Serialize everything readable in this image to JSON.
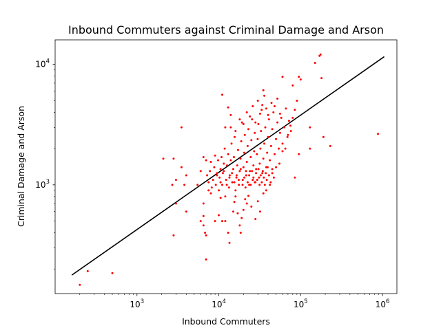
{
  "chart_data": {
    "type": "scatter",
    "title": "Inbound Commuters against Criminal Damage and Arson",
    "xlabel": "Inbound Commuters",
    "ylabel": "Criminal Damage and Arson",
    "x_scale": "log",
    "y_scale": "log",
    "xlim": [
      100,
      1500000
    ],
    "ylim": [
      125,
      16000
    ],
    "x_ticks": [
      {
        "value": 1000,
        "base": "10",
        "exp": "3"
      },
      {
        "value": 10000,
        "base": "10",
        "exp": "4"
      },
      {
        "value": 100000,
        "base": "10",
        "exp": "5"
      },
      {
        "value": 1000000,
        "base": "10",
        "exp": "6"
      }
    ],
    "y_ticks": [
      {
        "value": 1000,
        "base": "10",
        "exp": "3"
      },
      {
        "value": 10000,
        "base": "10",
        "exp": "4"
      }
    ],
    "grid": false,
    "marker_color": "#ff0000",
    "line_color": "#000000",
    "trend_line": {
      "x": [
        160,
        1050000
      ],
      "y": [
        178,
        11600
      ]
    },
    "series": [
      {
        "points": [
          [
            200,
            148
          ],
          [
            250,
            192
          ],
          [
            500,
            185
          ],
          [
            880000,
            2650
          ],
          [
            170000,
            11800
          ],
          [
            175000,
            12100
          ],
          [
            150000,
            10300
          ],
          [
            180000,
            7700
          ],
          [
            60000,
            7900
          ],
          [
            95000,
            7900
          ],
          [
            100000,
            7500
          ],
          [
            80000,
            6700
          ],
          [
            35000,
            6100
          ],
          [
            11000,
            5600
          ],
          [
            3500,
            3000
          ],
          [
            13000,
            4400
          ],
          [
            14000,
            3000
          ],
          [
            130000,
            3000
          ],
          [
            130000,
            2000
          ],
          [
            190000,
            2500
          ],
          [
            230000,
            2100
          ],
          [
            2100,
            1650
          ],
          [
            2800,
            1650
          ],
          [
            2700,
            1000
          ],
          [
            3000,
            1100
          ],
          [
            3500,
            1400
          ],
          [
            3800,
            1000
          ],
          [
            4000,
            1200
          ],
          [
            2800,
            380
          ],
          [
            3000,
            700
          ],
          [
            4000,
            600
          ],
          [
            5500,
            1000
          ],
          [
            6000,
            500
          ],
          [
            6500,
            700
          ],
          [
            6500,
            550
          ],
          [
            6500,
            460
          ],
          [
            6800,
            400
          ],
          [
            7000,
            380
          ],
          [
            7000,
            240
          ],
          [
            7500,
            900
          ],
          [
            8000,
            850
          ],
          [
            9000,
            500
          ],
          [
            10000,
            560
          ],
          [
            10500,
            780
          ],
          [
            11000,
            500
          ],
          [
            12000,
            500
          ],
          [
            13000,
            400
          ],
          [
            13500,
            330
          ],
          [
            15000,
            600
          ],
          [
            15500,
            720
          ],
          [
            16000,
            800
          ],
          [
            17000,
            580
          ],
          [
            18000,
            460
          ],
          [
            18500,
            400
          ],
          [
            19000,
            530
          ],
          [
            20000,
            620
          ],
          [
            21000,
            760
          ],
          [
            22000,
            700
          ],
          [
            23000,
            810
          ],
          [
            25000,
            660
          ],
          [
            28000,
            520
          ],
          [
            30000,
            730
          ],
          [
            32000,
            600
          ],
          [
            35000,
            850
          ],
          [
            38000,
            900
          ],
          [
            42000,
            1000
          ],
          [
            45000,
            1250
          ],
          [
            50000,
            1400
          ],
          [
            55000,
            1500
          ],
          [
            60000,
            1900
          ],
          [
            65000,
            2000
          ],
          [
            70000,
            2600
          ],
          [
            75000,
            3100
          ],
          [
            80000,
            3600
          ],
          [
            85000,
            4200
          ],
          [
            90000,
            5000
          ],
          [
            95000,
            1800
          ],
          [
            85000,
            1150
          ],
          [
            6000,
            1300
          ],
          [
            6500,
            1700
          ],
          [
            7000,
            1600
          ],
          [
            7200,
            1200
          ],
          [
            7500,
            1050
          ],
          [
            7800,
            1300
          ],
          [
            8000,
            1550
          ],
          [
            8200,
            950
          ],
          [
            8500,
            1100
          ],
          [
            8800,
            1400
          ],
          [
            9000,
            1750
          ],
          [
            9200,
            1000
          ],
          [
            9500,
            1250
          ],
          [
            9800,
            1600
          ],
          [
            10000,
            900
          ],
          [
            10200,
            1150
          ],
          [
            10500,
            1350
          ],
          [
            10800,
            1700
          ],
          [
            11000,
            1000
          ],
          [
            11200,
            1250
          ],
          [
            11500,
            1500
          ],
          [
            11800,
            2000
          ],
          [
            12000,
            800
          ],
          [
            12300,
            1100
          ],
          [
            12600,
            1450
          ],
          [
            13000,
            1800
          ],
          [
            13300,
            950
          ],
          [
            13600,
            1200
          ],
          [
            14000,
            1600
          ],
          [
            14300,
            2200
          ],
          [
            14600,
            1050
          ],
          [
            15000,
            1350
          ],
          [
            15300,
            1700
          ],
          [
            15600,
            2500
          ],
          [
            16000,
            900
          ],
          [
            16400,
            1150
          ],
          [
            16800,
            1450
          ],
          [
            17200,
            1950
          ],
          [
            17600,
            1000
          ],
          [
            18000,
            1300
          ],
          [
            18400,
            1650
          ],
          [
            18800,
            2300
          ],
          [
            19200,
            3300
          ],
          [
            19600,
            1100
          ],
          [
            20000,
            1400
          ],
          [
            20400,
            1850
          ],
          [
            20800,
            2600
          ],
          [
            21200,
            950
          ],
          [
            21600,
            1200
          ],
          [
            22000,
            1550
          ],
          [
            22500,
            2100
          ],
          [
            23000,
            2900
          ],
          [
            23500,
            1000
          ],
          [
            24000,
            1300
          ],
          [
            24500,
            1700
          ],
          [
            25000,
            2350
          ],
          [
            25500,
            3500
          ],
          [
            26000,
            1100
          ],
          [
            26500,
            1450
          ],
          [
            27000,
            1900
          ],
          [
            27500,
            2700
          ],
          [
            28000,
            1050
          ],
          [
            28600,
            1350
          ],
          [
            29200,
            1800
          ],
          [
            29800,
            2400
          ],
          [
            30400,
            3200
          ],
          [
            31000,
            1150
          ],
          [
            31600,
            1500
          ],
          [
            32200,
            2000
          ],
          [
            32800,
            2800
          ],
          [
            33400,
            4200
          ],
          [
            34000,
            1250
          ],
          [
            35000,
            1650
          ],
          [
            36000,
            2200
          ],
          [
            37000,
            3000
          ],
          [
            38000,
            1400
          ],
          [
            39000,
            1850
          ],
          [
            40000,
            2500
          ],
          [
            41000,
            3500
          ],
          [
            42000,
            1600
          ],
          [
            43500,
            2100
          ],
          [
            45000,
            2900
          ],
          [
            46500,
            4000
          ],
          [
            48000,
            1800
          ],
          [
            50000,
            2400
          ],
          [
            52000,
            3300
          ],
          [
            54000,
            2000
          ],
          [
            56000,
            2700
          ],
          [
            58000,
            3600
          ],
          [
            60000,
            2200
          ],
          [
            63000,
            3000
          ],
          [
            66000,
            4300
          ],
          [
            69000,
            2500
          ],
          [
            72000,
            3400
          ],
          [
            76000,
            2800
          ],
          [
            9500,
            1200
          ],
          [
            10500,
            1050
          ],
          [
            11500,
            1300
          ],
          [
            12500,
            1000
          ],
          [
            13500,
            1150
          ],
          [
            14500,
            1250
          ],
          [
            15500,
            1050
          ],
          [
            16500,
            1200
          ],
          [
            17500,
            1100
          ],
          [
            18500,
            1350
          ],
          [
            19500,
            1000
          ],
          [
            20500,
            1150
          ],
          [
            21500,
            1300
          ],
          [
            22500,
            1050
          ],
          [
            23500,
            1200
          ],
          [
            24500,
            1000
          ],
          [
            25500,
            1300
          ],
          [
            26500,
            1150
          ],
          [
            27500,
            1050
          ],
          [
            28500,
            1250
          ],
          [
            29500,
            1100
          ],
          [
            30500,
            1350
          ],
          [
            31500,
            1000
          ],
          [
            32500,
            1200
          ],
          [
            33500,
            1050
          ],
          [
            34500,
            1300
          ],
          [
            35500,
            1150
          ],
          [
            36500,
            1000
          ],
          [
            37500,
            1250
          ],
          [
            38500,
            1100
          ],
          [
            39500,
            1400
          ],
          [
            41000,
            1200
          ],
          [
            43000,
            1050
          ],
          [
            45000,
            1350
          ],
          [
            47000,
            1150
          ],
          [
            12000,
            3000
          ],
          [
            14000,
            3800
          ],
          [
            16000,
            2800
          ],
          [
            18000,
            3500
          ],
          [
            20000,
            3200
          ],
          [
            22000,
            4000
          ],
          [
            24000,
            3700
          ],
          [
            26000,
            4500
          ],
          [
            28000,
            3300
          ],
          [
            30000,
            5000
          ],
          [
            32000,
            3900
          ],
          [
            34000,
            4600
          ],
          [
            36000,
            5500
          ],
          [
            38000,
            4300
          ],
          [
            40000,
            3800
          ],
          [
            44000,
            4800
          ],
          [
            48000,
            4500
          ],
          [
            52000,
            5200
          ],
          [
            56000,
            3900
          ]
        ]
      }
    ]
  }
}
